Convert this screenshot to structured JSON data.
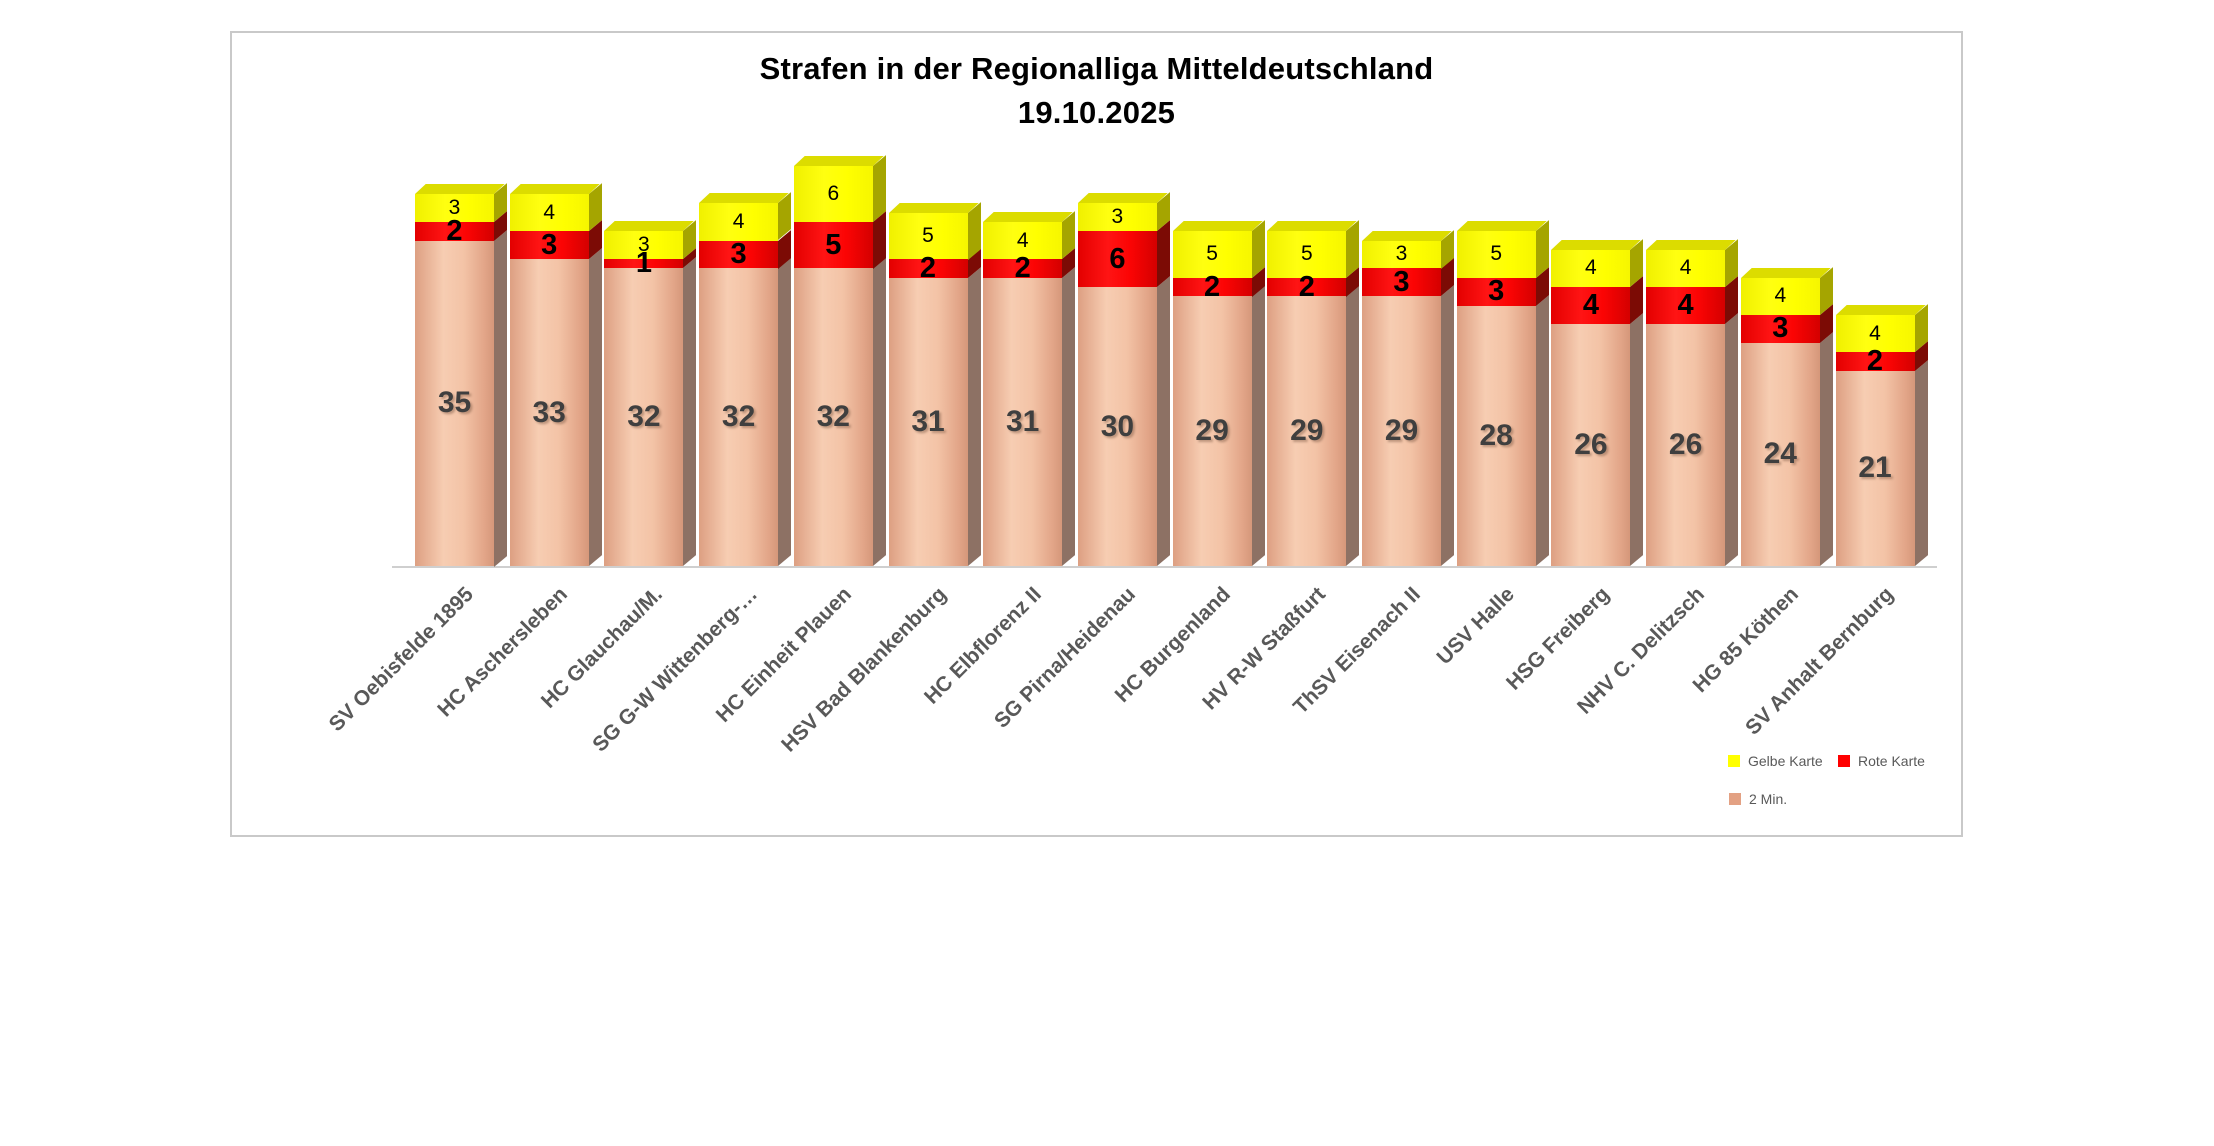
{
  "chart_data": {
    "type": "bar",
    "stacked": true,
    "three_d": true,
    "title": "Strafen in der Regionalliga Mitteldeutschland",
    "subtitle": "19.10.2025",
    "categories": [
      "SV Oebisfelde 1895",
      "HC Aschersleben",
      "HC Glauchau/M.",
      "SG G-W Wittenberg-…",
      "HC Einheit Plauen",
      "HSV Bad Blankenburg",
      "HC Elbflorenz II",
      "SG Pirna/Heidenau",
      "HC Burgenland",
      "HV R-W Staßfurt",
      "ThSV Eisenach II",
      "USV Halle",
      "HSG Freiberg",
      "NHV C. Delitzsch",
      "HG 85 Köthen",
      "SV Anhalt Bernburg"
    ],
    "series": [
      {
        "name": "2 Min.",
        "color": "#f2c0a2",
        "values": [
          35,
          33,
          32,
          32,
          32,
          31,
          31,
          30,
          29,
          29,
          29,
          28,
          26,
          26,
          24,
          21
        ]
      },
      {
        "name": "Rote Karte",
        "color": "#ff0000",
        "values": [
          2,
          3,
          1,
          3,
          5,
          2,
          2,
          6,
          2,
          2,
          3,
          3,
          4,
          4,
          3,
          2
        ]
      },
      {
        "name": "Gelbe Karte",
        "color": "#ffff00",
        "values": [
          3,
          4,
          3,
          4,
          6,
          5,
          4,
          3,
          5,
          5,
          3,
          5,
          4,
          4,
          4,
          4
        ]
      }
    ],
    "legend": {
      "position": "bottom-right",
      "items": [
        {
          "label": "Gelbe Karte",
          "color": "#ffff00"
        },
        {
          "label": "Rote Karte",
          "color": "#ff0000"
        },
        {
          "label": "2 Min.",
          "color": "#e3a183"
        }
      ]
    },
    "axis": {
      "x_baseline_visible": true,
      "y_axis_visible": false,
      "value_labels": "center"
    }
  }
}
